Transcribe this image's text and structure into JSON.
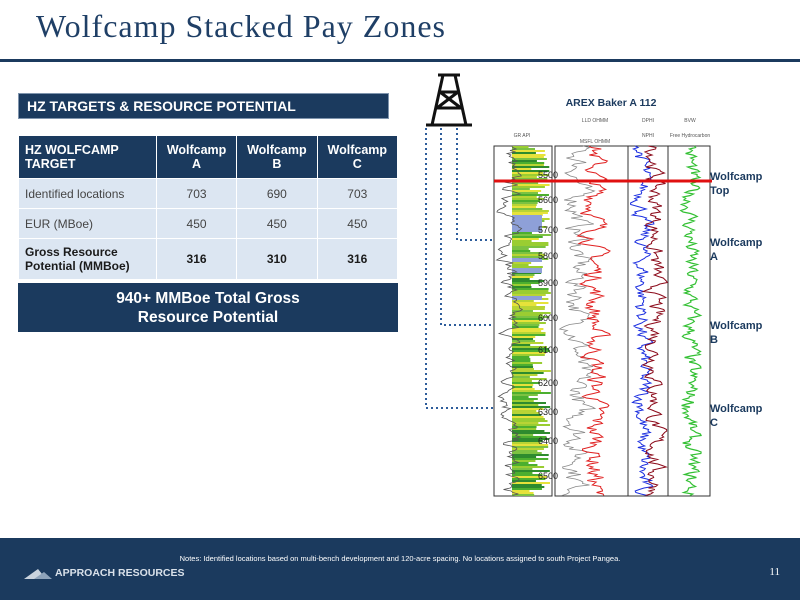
{
  "header": {
    "title": "Wolfcamp Stacked Pay Zones"
  },
  "table": {
    "title": "HZ TARGETS & RESOURCE POTENTIAL",
    "columns": [
      "HZ WOLFCAMP TARGET",
      "Wolfcamp A",
      "Wolfcamp B",
      "Wolfcamp C"
    ],
    "rows": [
      [
        "Identified locations",
        703,
        690,
        703
      ],
      [
        "EUR (MBoe)",
        450,
        450,
        450
      ],
      [
        "Gross Resource Potential (MMBoe)",
        316,
        310,
        316
      ]
    ],
    "total": "940+ MMBoe Total Gross Resource Potential"
  },
  "well_log": {
    "title": "AREX Baker A 112",
    "track_headers": [
      "GR API",
      "LLD OHMM",
      "MSFL OHMM",
      "DPHI",
      "NPHI",
      "BVW",
      "Free Hydrocarbon"
    ],
    "depths": [
      "5500",
      "5600",
      "5700",
      "5800",
      "5900",
      "6000",
      "6100",
      "6200",
      "6300",
      "6400",
      "6500"
    ],
    "zones": [
      "Wolfcamp Top",
      "Wolfcamp A",
      "Wolfcamp B",
      "Wolfcamp C"
    ]
  },
  "footer": {
    "notes": "Notes: Identified locations based on multi-bench development and 120-acre spacing.  No locations assigned to south Project Pangea.",
    "company": "APPROACH RESOURCES",
    "page": "11"
  }
}
